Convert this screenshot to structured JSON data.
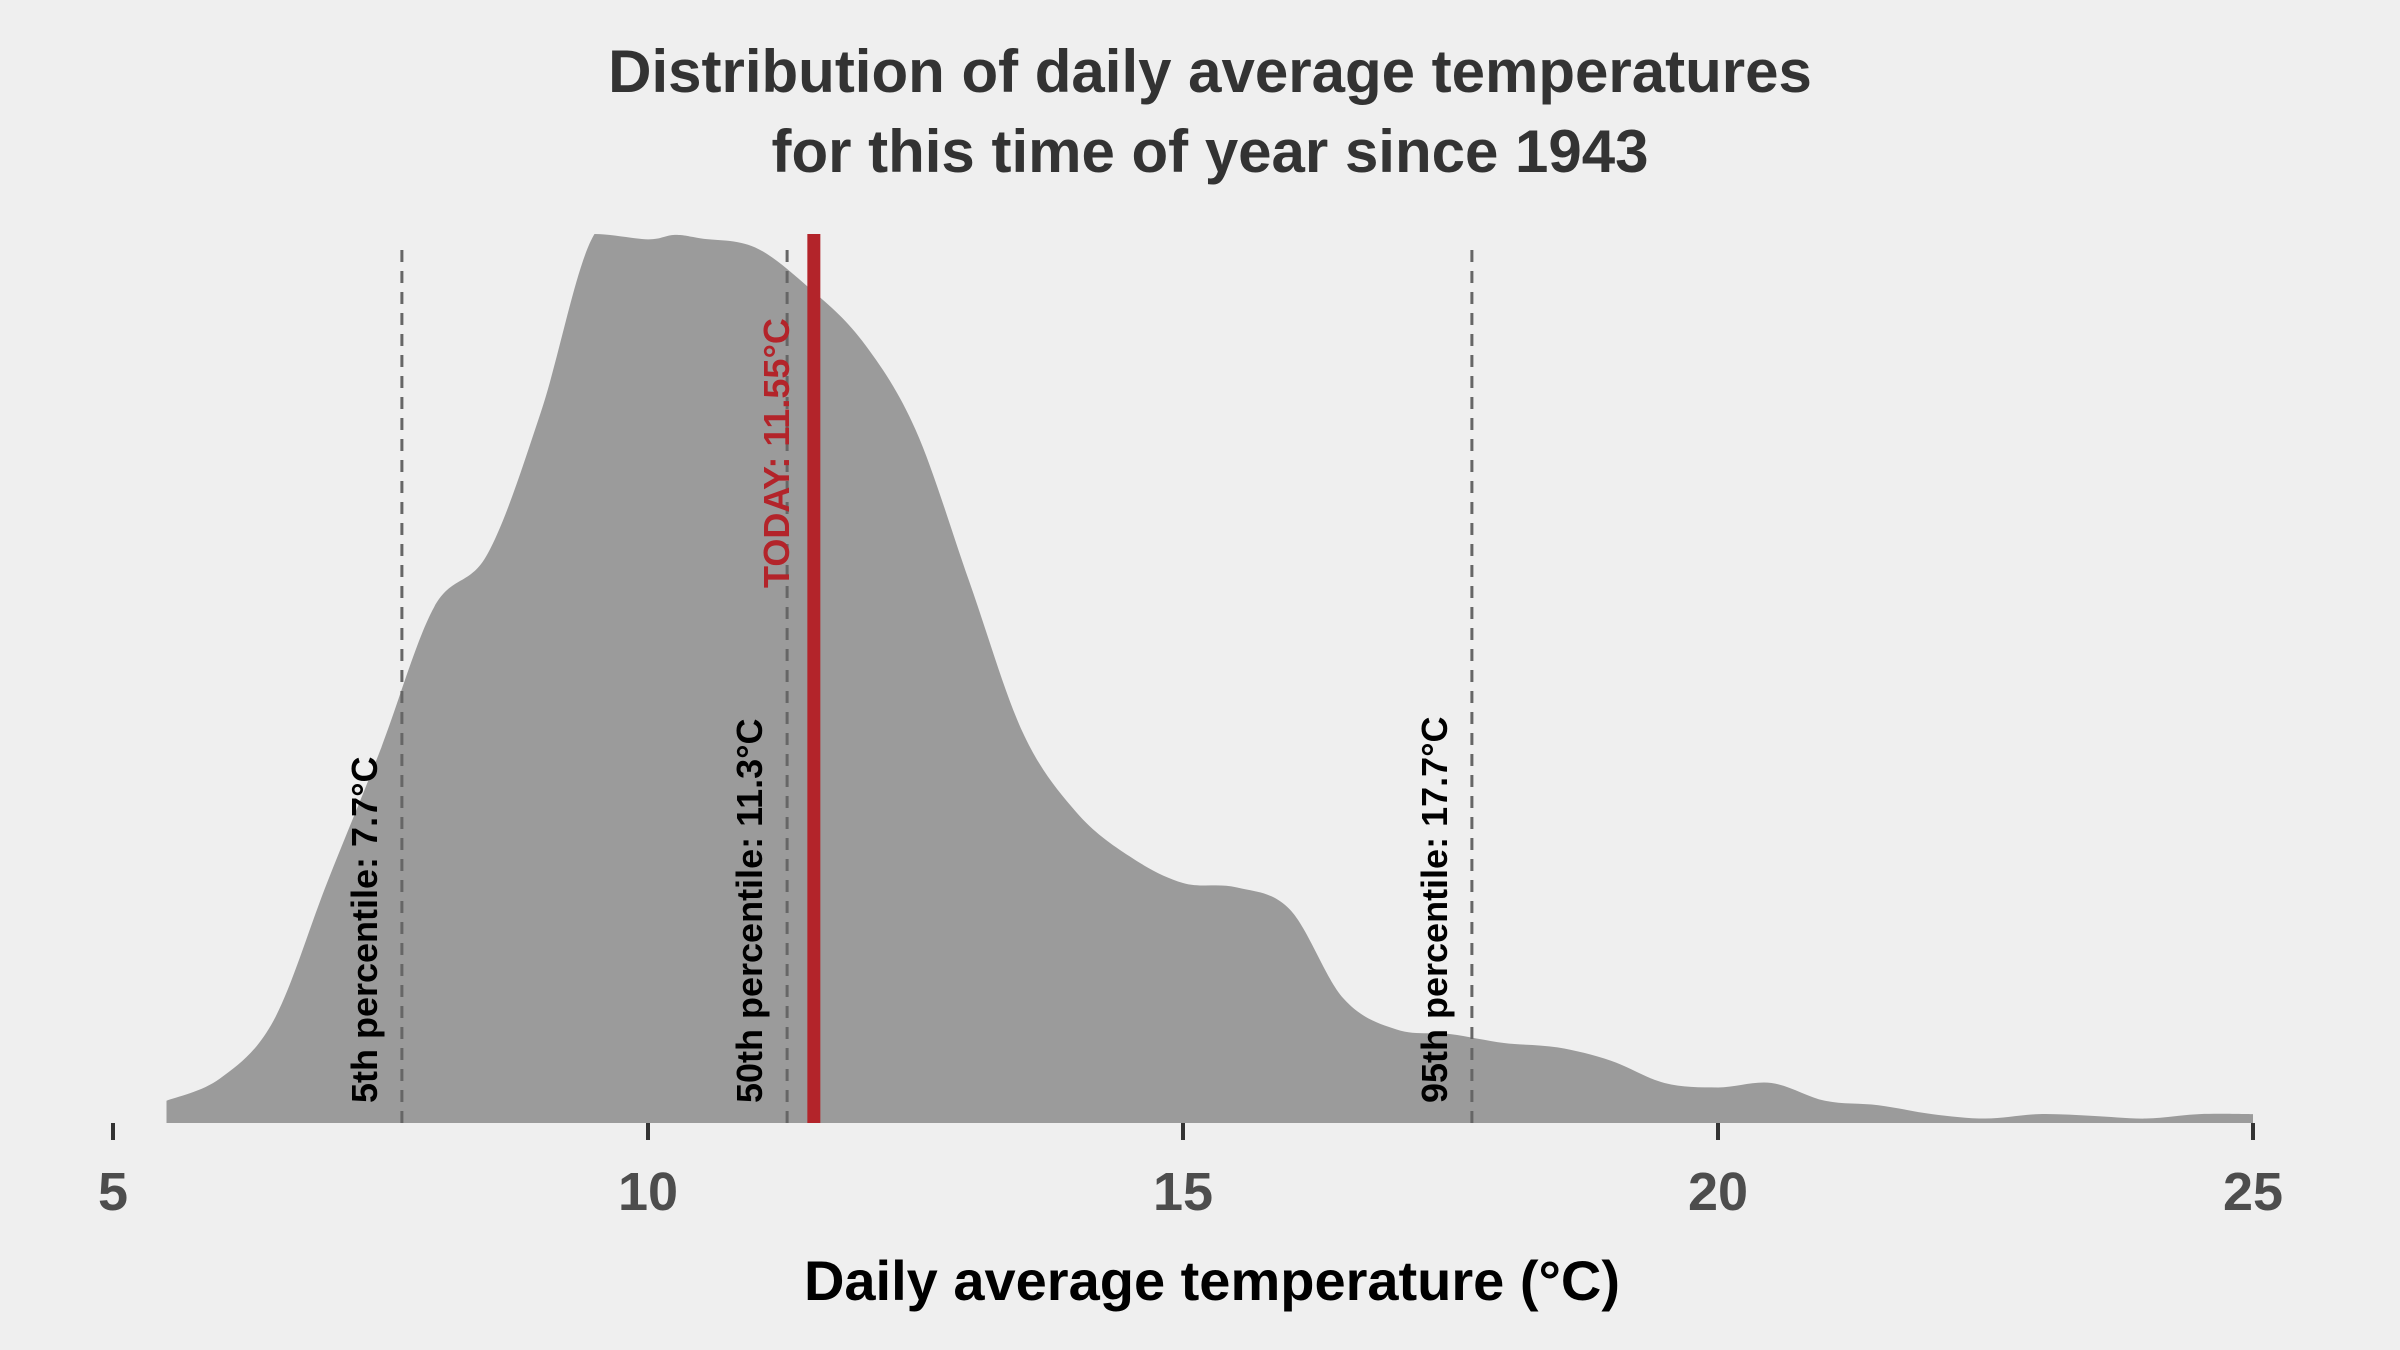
{
  "chart_data": {
    "type": "area",
    "title_lines": [
      "Distribution of daily average temperatures",
      "for this time of year since 1943"
    ],
    "xlabel": "Daily average temperature (°C)",
    "ylabel": "",
    "xlim": [
      5,
      25
    ],
    "x_ticks": [
      5,
      10,
      15,
      20,
      25
    ],
    "x_tick_labels": [
      "5",
      "10",
      "15",
      "20",
      "25"
    ],
    "grid": false,
    "density": {
      "x": [
        5.5,
        6.0,
        6.5,
        7.0,
        7.5,
        8.0,
        8.5,
        9.0,
        9.5,
        10.0,
        10.25,
        10.5,
        11.0,
        11.5,
        12.0,
        12.5,
        13.0,
        13.5,
        14.0,
        14.5,
        15.0,
        15.5,
        16.0,
        16.5,
        17.0,
        17.5,
        18.0,
        18.5,
        19.0,
        19.5,
        20.0,
        20.5,
        21.0,
        21.5,
        22.0,
        22.5,
        23.0,
        23.5,
        24.0,
        24.5,
        25.0
      ],
      "y": [
        0.025,
        0.05,
        0.115,
        0.27,
        0.42,
        0.58,
        0.64,
        0.8,
        1.0,
        0.994,
        0.999,
        0.995,
        0.985,
        0.94,
        0.88,
        0.78,
        0.61,
        0.44,
        0.35,
        0.3,
        0.27,
        0.265,
        0.24,
        0.14,
        0.105,
        0.1,
        0.09,
        0.085,
        0.07,
        0.045,
        0.04,
        0.045,
        0.025,
        0.02,
        0.01,
        0.005,
        0.01,
        0.008,
        0.005,
        0.01,
        0.01
      ],
      "fill_color": "#9b9b9b"
    },
    "percentiles": [
      {
        "label": "5th percentile:  7.7°C",
        "value": 7.7
      },
      {
        "label": "50th percentile:  11.3°C",
        "value": 11.3
      },
      {
        "label": "95th percentile:  17.7°C",
        "value": 17.7
      }
    ],
    "today": {
      "label": "TODAY:  11.55°C",
      "value": 11.55,
      "color": "#b3242a"
    },
    "colors": {
      "background": "#efefef",
      "density_fill": "#9b9b9b",
      "percentile_line": "#666666",
      "today_line": "#b3242a"
    }
  }
}
